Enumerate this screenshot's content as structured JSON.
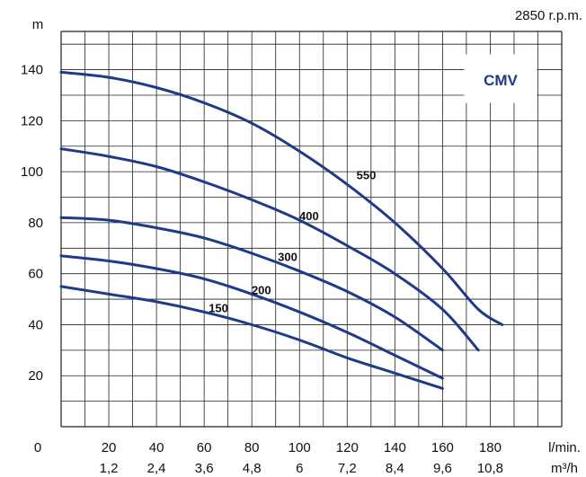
{
  "speed_label": "2850 r.p.m.",
  "brand_label": "CMV",
  "colors": {
    "curve": "#1f3a8a",
    "grid": "#222222",
    "brand": "#1f3a8a"
  },
  "chart_data": {
    "type": "line",
    "y_unit": "m",
    "x_unit_primary": "l/min.",
    "x_unit_secondary": "m³/h",
    "origin_label": "0",
    "x_ticks": [
      20,
      40,
      60,
      80,
      100,
      120,
      140,
      160,
      180
    ],
    "x_ticks_secondary": [
      "1,2",
      "2,4",
      "3,6",
      "4,8",
      "6",
      "7,2",
      "8,4",
      "9,6",
      "10,8"
    ],
    "y_ticks": [
      20,
      40,
      60,
      80,
      100,
      120,
      140
    ],
    "xlim": [
      0,
      210
    ],
    "ylim": [
      0,
      155
    ],
    "grid": true,
    "series": [
      {
        "name": "550",
        "points": [
          [
            0,
            139
          ],
          [
            20,
            137
          ],
          [
            40,
            133
          ],
          [
            60,
            127
          ],
          [
            80,
            119
          ],
          [
            100,
            108
          ],
          [
            120,
            95
          ],
          [
            140,
            80
          ],
          [
            160,
            62
          ],
          [
            175,
            46
          ],
          [
            185,
            40
          ]
        ]
      },
      {
        "name": "400",
        "points": [
          [
            0,
            109
          ],
          [
            20,
            106
          ],
          [
            40,
            102
          ],
          [
            60,
            96
          ],
          [
            80,
            89
          ],
          [
            100,
            81
          ],
          [
            120,
            71
          ],
          [
            140,
            60
          ],
          [
            160,
            46
          ],
          [
            175,
            30
          ]
        ]
      },
      {
        "name": "300",
        "points": [
          [
            0,
            82
          ],
          [
            20,
            81
          ],
          [
            40,
            78
          ],
          [
            60,
            74
          ],
          [
            80,
            68
          ],
          [
            100,
            61
          ],
          [
            120,
            53
          ],
          [
            140,
            43
          ],
          [
            160,
            30
          ]
        ]
      },
      {
        "name": "200",
        "points": [
          [
            0,
            67
          ],
          [
            20,
            65
          ],
          [
            40,
            62
          ],
          [
            60,
            58
          ],
          [
            80,
            52
          ],
          [
            100,
            45
          ],
          [
            120,
            37
          ],
          [
            140,
            28
          ],
          [
            160,
            19
          ]
        ]
      },
      {
        "name": "150",
        "points": [
          [
            0,
            55
          ],
          [
            20,
            52
          ],
          [
            40,
            49
          ],
          [
            60,
            45
          ],
          [
            80,
            40
          ],
          [
            100,
            34
          ],
          [
            120,
            27
          ],
          [
            140,
            21
          ],
          [
            160,
            15
          ]
        ]
      }
    ]
  }
}
